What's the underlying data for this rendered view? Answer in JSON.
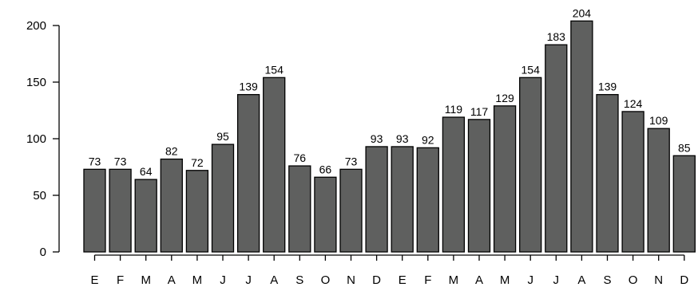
{
  "chart_data": {
    "type": "bar",
    "title": "",
    "xlabel": "",
    "ylabel": "",
    "ylim": [
      0,
      210
    ],
    "yticks": [
      0,
      50,
      100,
      150,
      200
    ],
    "grid": false,
    "bar_color": "#5f605f",
    "categories": [
      "E",
      "F",
      "M",
      "A",
      "M",
      "J",
      "J",
      "A",
      "S",
      "O",
      "N",
      "D",
      "E",
      "F",
      "M",
      "A",
      "M",
      "J",
      "J",
      "A",
      "S",
      "O",
      "N",
      "D"
    ],
    "values": [
      73,
      73,
      64,
      82,
      72,
      95,
      139,
      154,
      76,
      66,
      73,
      93,
      93,
      92,
      119,
      117,
      129,
      154,
      183,
      204,
      139,
      124,
      109,
      85
    ],
    "labels": [
      "73",
      "73",
      "64",
      "82",
      "72",
      "95",
      "139",
      "154",
      "76",
      "66",
      "73",
      "93",
      "93",
      "92",
      "119",
      "117",
      "129",
      "154",
      "183",
      "204",
      "139",
      "124",
      "109",
      "85"
    ]
  }
}
